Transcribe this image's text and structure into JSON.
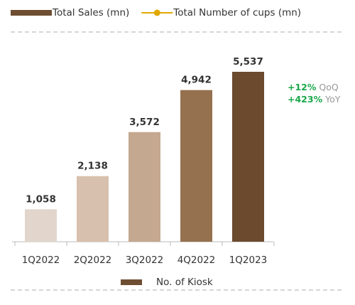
{
  "chart_data": {
    "type": "bar",
    "legend_items": [
      {
        "name": "Total Sales (mn)",
        "color": "#6e4e32",
        "style": "bar"
      },
      {
        "name": "Total Number of cups (mn)",
        "color": "#e0a800",
        "style": "line"
      }
    ],
    "categories": [
      "1Q2022",
      "2Q2022",
      "3Q2022",
      "4Q2022",
      "1Q2023"
    ],
    "series": [
      {
        "name": "No. of Kiosk",
        "color": "#6e4e32",
        "colors": [
          "#e2d6cc",
          "#d7c0ad",
          "#c4a88f",
          "#957150",
          "#6b4a2e"
        ],
        "values": [
          1058,
          2138,
          3572,
          4942,
          5537
        ],
        "value_labels": [
          "1,058",
          "2,138",
          "3,572",
          "4,942",
          "5,537"
        ]
      }
    ],
    "ylim": [
      0,
      6000
    ],
    "annotations": [
      {
        "change": "+12%",
        "label": "QoQ"
      },
      {
        "change": "+423%",
        "label": "YoY"
      }
    ]
  }
}
